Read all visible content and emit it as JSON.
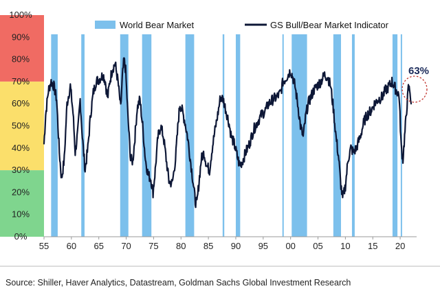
{
  "chart_data": {
    "type": "line",
    "title": "",
    "xlabel": "",
    "ylabel": "",
    "xlim": [
      1955,
      2023
    ],
    "ylim": [
      0,
      100
    ],
    "x_ticks": [
      "55",
      "60",
      "65",
      "70",
      "75",
      "80",
      "85",
      "90",
      "95",
      "00",
      "05",
      "10",
      "15",
      "20"
    ],
    "x_tick_years": [
      1955,
      1960,
      1965,
      1970,
      1975,
      1980,
      1985,
      1990,
      1995,
      2000,
      2005,
      2010,
      2015,
      2020
    ],
    "y_ticks": [
      "0%",
      "10%",
      "20%",
      "30%",
      "40%",
      "50%",
      "60%",
      "70%",
      "80%",
      "90%",
      "100%"
    ],
    "y_tick_values": [
      0,
      10,
      20,
      30,
      40,
      50,
      60,
      70,
      80,
      90,
      100
    ],
    "zones": [
      {
        "from": 70,
        "to": 100,
        "color": "#f06b63"
      },
      {
        "from": 30,
        "to": 70,
        "color": "#fbdf6b"
      },
      {
        "from": 0,
        "to": 30,
        "color": "#7fd58e"
      }
    ],
    "legend": {
      "placement": "top",
      "entries": [
        "World Bear Market",
        "GS Bull/Bear Market Indicator"
      ]
    },
    "bear_market_color": "#7cc0ec",
    "line_color": "#0d1736",
    "bear_markets": [
      {
        "start": 1956.3,
        "end": 1957.5
      },
      {
        "start": 1961.8,
        "end": 1962.4
      },
      {
        "start": 1968.9,
        "end": 1970.4
      },
      {
        "start": 1972.9,
        "end": 1974.6
      },
      {
        "start": 1980.8,
        "end": 1982.4
      },
      {
        "start": 1987.6,
        "end": 1987.9
      },
      {
        "start": 1990.0,
        "end": 1990.8
      },
      {
        "start": 1998.5,
        "end": 1998.7
      },
      {
        "start": 2000.2,
        "end": 2003.0
      },
      {
        "start": 2007.8,
        "end": 2009.2
      },
      {
        "start": 2011.2,
        "end": 2011.7
      },
      {
        "start": 2018.6,
        "end": 2019.5
      },
      {
        "start": 2020.1,
        "end": 2020.3
      }
    ],
    "series": [
      {
        "name": "GS Bull/Bear Market Indicator",
        "x": [
          1955.0,
          1955.3,
          1955.8,
          1956.3,
          1956.8,
          1957.3,
          1957.8,
          1958.2,
          1958.7,
          1959.2,
          1959.8,
          1960.3,
          1960.7,
          1961.2,
          1961.6,
          1962.0,
          1962.5,
          1963.0,
          1963.5,
          1964.0,
          1964.5,
          1965.0,
          1965.4,
          1965.8,
          1966.2,
          1966.6,
          1967.0,
          1967.5,
          1968.0,
          1968.5,
          1969.0,
          1969.3,
          1969.6,
          1969.9,
          1970.3,
          1970.8,
          1971.2,
          1971.6,
          1972.0,
          1972.5,
          1973.0,
          1973.5,
          1974.0,
          1974.5,
          1974.9,
          1975.3,
          1975.8,
          1976.3,
          1976.8,
          1977.3,
          1977.8,
          1978.4,
          1979.0,
          1979.5,
          1979.8,
          1980.2,
          1980.7,
          1981.2,
          1981.7,
          1982.2,
          1982.6,
          1982.9,
          1983.3,
          1983.7,
          1984.2,
          1984.7,
          1985.2,
          1985.7,
          1986.2,
          1986.7,
          1987.2,
          1987.7,
          1988.2,
          1988.7,
          1989.2,
          1989.7,
          1990.2,
          1990.7,
          1991.2,
          1991.8,
          1992.5,
          1993.2,
          1994.0,
          1994.7,
          1995.4,
          1996.0,
          1996.8,
          1997.5,
          1998.2,
          1998.6,
          1999.0,
          1999.5,
          2000.0,
          2000.4,
          2000.8,
          2001.3,
          2001.8,
          2002.3,
          2002.8,
          2003.2,
          2003.7,
          2004.2,
          2004.8,
          2005.5,
          2006.2,
          2006.8,
          2007.3,
          2007.8,
          2008.3,
          2008.8,
          2009.1,
          2009.5,
          2010.0,
          2010.5,
          2011.0,
          2011.5,
          2012.0,
          2012.7,
          2013.4,
          2014.0,
          2014.7,
          2015.3,
          2016.0,
          2016.7,
          2017.3,
          2018.0,
          2018.5,
          2018.9,
          2019.3,
          2019.8,
          2020.2,
          2020.5,
          2020.8,
          2021.1,
          2021.5,
          2021.8,
          2022.0
        ],
        "values": [
          42,
          55,
          66,
          70,
          68,
          62,
          38,
          26,
          35,
          60,
          68,
          56,
          38,
          48,
          62,
          45,
          30,
          40,
          55,
          65,
          70,
          71,
          72,
          73,
          70,
          62,
          70,
          76,
          78,
          70,
          58,
          72,
          80,
          75,
          55,
          35,
          34,
          45,
          58,
          62,
          50,
          35,
          28,
          26,
          20,
          30,
          45,
          50,
          45,
          35,
          25,
          24,
          35,
          52,
          60,
          57,
          52,
          45,
          35,
          25,
          16,
          15,
          25,
          35,
          38,
          32,
          30,
          40,
          48,
          55,
          63,
          62,
          57,
          52,
          45,
          42,
          37,
          32,
          34,
          38,
          42,
          48,
          52,
          55,
          57,
          60,
          62,
          63,
          65,
          70,
          71,
          73,
          75,
          72,
          68,
          60,
          50,
          45,
          55,
          60,
          63,
          66,
          68,
          70,
          73,
          72,
          68,
          58,
          45,
          35,
          25,
          17,
          23,
          35,
          40,
          38,
          40,
          45,
          52,
          55,
          57,
          60,
          62,
          63,
          66,
          68,
          70,
          68,
          66,
          64,
          40,
          35,
          45,
          55,
          67,
          66,
          60
        ]
      }
    ],
    "annotation": {
      "label": "63%",
      "x": 2021.5,
      "y": 64
    }
  },
  "source_text": "Source: Shiller, Haver Analytics, Datastream, Goldman Sachs Global Investment Research"
}
